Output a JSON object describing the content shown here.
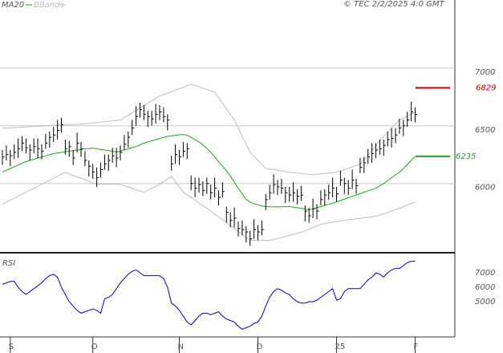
{
  "chart_data": [
    {
      "type": "ohlc",
      "source": "© TEC 2/2/2025 4:0 GMT",
      "categories": [
        null,
        null,
        "S",
        null,
        null,
        null,
        null,
        null,
        null,
        null,
        null,
        null,
        null,
        null,
        null,
        null,
        null,
        null,
        null,
        null,
        null,
        null,
        null,
        "O",
        null,
        null,
        null,
        null,
        null,
        null,
        null,
        null,
        null,
        null,
        null,
        null,
        null,
        null,
        null,
        null,
        null,
        null,
        null,
        null,
        null,
        "N",
        null,
        null,
        null,
        null,
        null,
        null,
        null,
        null,
        null,
        null,
        null,
        null,
        null,
        null,
        null,
        null,
        null,
        null,
        null,
        "D",
        null,
        null,
        null,
        null,
        null,
        null,
        null,
        null,
        null,
        null,
        null,
        null,
        null,
        null,
        null,
        null,
        null,
        null,
        null,
        "25",
        null,
        null,
        null,
        null,
        null,
        null,
        null,
        null,
        null,
        null,
        null,
        null,
        null,
        null,
        null,
        null,
        null,
        null,
        null,
        "F"
      ],
      "price": {
        "color": "#000000",
        "high": [
          6290,
          6330,
          6290,
          6340,
          6390,
          6410,
          6390,
          6340,
          6390,
          6390,
          6340,
          6430,
          6450,
          6490,
          6550,
          6570,
          6380,
          6370,
          6290,
          6440,
          6360,
          6280,
          6200,
          6170,
          6140,
          6180,
          6250,
          6250,
          6310,
          6310,
          6330,
          6420,
          6450,
          6550,
          6670,
          6700,
          6680,
          6630,
          6630,
          6690,
          6680,
          6660,
          6600,
          6240,
          6340,
          6290,
          6360,
          6350,
          6070,
          6050,
          6050,
          6020,
          6050,
          5990,
          6050,
          5940,
          6010,
          5800,
          5750,
          5790,
          5670,
          5680,
          5630,
          5590,
          5690,
          5640,
          5680,
          5910,
          5990,
          6080,
          6030,
          6040,
          5970,
          5970,
          6010,
          5950,
          5980,
          5810,
          5790,
          5870,
          5820,
          5940,
          5950,
          5990,
          6050,
          5970,
          6110,
          6050,
          6030,
          6120,
          6040,
          6220,
          6230,
          6300,
          6350,
          6350,
          6380,
          6380,
          6450,
          6480,
          6480,
          6560,
          6550,
          6620,
          6710,
          6660
        ],
        "low": [
          6160,
          6200,
          6150,
          6210,
          6220,
          6280,
          6260,
          6200,
          6260,
          6220,
          6210,
          6300,
          6310,
          6360,
          6380,
          6440,
          6250,
          6230,
          6160,
          6270,
          6230,
          6150,
          6060,
          6040,
          5970,
          6050,
          6120,
          6110,
          6180,
          6140,
          6200,
          6290,
          6310,
          6420,
          6500,
          6570,
          6550,
          6490,
          6500,
          6520,
          6550,
          6530,
          6460,
          6110,
          6170,
          6160,
          6230,
          6210,
          5940,
          5880,
          5920,
          5890,
          5910,
          5860,
          5880,
          5810,
          5880,
          5660,
          5620,
          5620,
          5540,
          5550,
          5490,
          5460,
          5520,
          5510,
          5550,
          5770,
          5860,
          5910,
          5900,
          5910,
          5830,
          5840,
          5840,
          5820,
          5850,
          5670,
          5660,
          5700,
          5690,
          5810,
          5810,
          5860,
          5880,
          5840,
          5980,
          5910,
          5900,
          5950,
          5910,
          6090,
          6090,
          6170,
          6180,
          6220,
          6250,
          6240,
          6320,
          6310,
          6350,
          6430,
          6410,
          6490,
          6540,
          6530
        ],
        "close": [
          6230,
          6250,
          6240,
          6270,
          6300,
          6350,
          6310,
          6290,
          6320,
          6300,
          6280,
          6350,
          6400,
          6420,
          6460,
          6510,
          6300,
          6320,
          6220,
          6350,
          6300,
          6200,
          6150,
          6100,
          6050,
          6120,
          6170,
          6200,
          6240,
          6220,
          6270,
          6340,
          6400,
          6480,
          6580,
          6640,
          6600,
          6580,
          6560,
          6600,
          6620,
          6580,
          6550,
          6170,
          6250,
          6230,
          6280,
          6300,
          6000,
          5960,
          5990,
          5940,
          6000,
          5920,
          5960,
          5880,
          5930,
          5750,
          5680,
          5700,
          5610,
          5600,
          5580,
          5520,
          5600,
          5580,
          5600,
          5860,
          5920,
          5990,
          5970,
          5960,
          5920,
          5900,
          5920,
          5890,
          5900,
          5760,
          5720,
          5780,
          5760,
          5860,
          5900,
          5920,
          5960,
          5910,
          6030,
          6000,
          5960,
          6030,
          5980,
          6140,
          6180,
          6230,
          6260,
          6290,
          6300,
          6330,
          6380,
          6390,
          6420,
          6480,
          6500,
          6550,
          6620,
          6600
        ]
      },
      "ma": {
        "name": "MA20",
        "color": "#1fa51f",
        "values": [
          6100,
          6115,
          6130,
          6145,
          6160,
          6175,
          6190,
          6200,
          6210,
          6220,
          6230,
          6240,
          6250,
          6258,
          6265,
          6270,
          6275,
          6280,
          6285,
          6290,
          6295,
          6300,
          6303,
          6305,
          6300,
          6295,
          6290,
          6285,
          6280,
          6272,
          6280,
          6290,
          6300,
          6310,
          6320,
          6335,
          6350,
          6360,
          6370,
          6380,
          6390,
          6400,
          6408,
          6412,
          6418,
          6422,
          6424,
          6420,
          6400,
          6380,
          6360,
          6335,
          6306,
          6270,
          6230,
          6190,
          6150,
          6110,
          6065,
          6010,
          5960,
          5910,
          5860,
          5840,
          5825,
          5815,
          5805,
          5800,
          5798,
          5797,
          5797,
          5798,
          5799,
          5800,
          5795,
          5790,
          5785,
          5778,
          5771,
          5780,
          5790,
          5800,
          5810,
          5819,
          5830,
          5840,
          5852,
          5865,
          5877,
          5889,
          5900,
          5912,
          5924,
          5936,
          5947,
          5958,
          5980,
          6000,
          6025,
          6050,
          6075,
          6097,
          6130,
          6165,
          6200,
          6235
        ]
      },
      "bbands": {
        "name": "BBands",
        "color": "#bdbdbd",
        "upper": [
          6480,
          6480,
          6482,
          6484,
          6486,
          6488,
          6490,
          6492,
          6494,
          6496,
          6498,
          6500,
          6502,
          6504,
          6506,
          6508,
          6510,
          6511,
          6512,
          6513,
          6514,
          6518,
          6521,
          6525,
          6528,
          6532,
          6535,
          6539,
          6542,
          6546,
          6549,
          6570,
          6591,
          6612,
          6633,
          6653,
          6674,
          6695,
          6716,
          6737,
          6757,
          6770,
          6783,
          6796,
          6809,
          6822,
          6835,
          6848,
          6861,
          6850,
          6838,
          6827,
          6815,
          6804,
          6792,
          6743,
          6695,
          6646,
          6598,
          6549,
          6480,
          6410,
          6341,
          6271,
          6236,
          6202,
          6167,
          6132,
          6126,
          6120,
          6114,
          6108,
          6103,
          6097,
          6094,
          6090,
          6087,
          6083,
          6080,
          6076,
          6080,
          6083,
          6087,
          6090,
          6094,
          6097,
          6109,
          6120,
          6132,
          6144,
          6155,
          6167,
          6207,
          6248,
          6288,
          6329,
          6369,
          6410,
          6445,
          6480,
          6515,
          6549,
          6566,
          6584,
          6601,
          6618
        ],
        "lower": [
          5820,
          5837,
          5855,
          5872,
          5890,
          5907,
          5924,
          5941,
          5958,
          5975,
          5993,
          6010,
          6028,
          6045,
          6062,
          6080,
          6097,
          6084,
          6071,
          6058,
          6045,
          6032,
          6019,
          6006,
          5993,
          5993,
          5993,
          5993,
          5993,
          5993,
          5993,
          5982,
          5970,
          5959,
          5947,
          5936,
          5924,
          5941,
          5959,
          5976,
          5993,
          6016,
          6039,
          6062,
          6016,
          5970,
          5924,
          5901,
          5878,
          5855,
          5831,
          5808,
          5785,
          5760,
          5735,
          5711,
          5686,
          5661,
          5636,
          5611,
          5585,
          5559,
          5533,
          5507,
          5507,
          5507,
          5507,
          5507,
          5507,
          5516,
          5524,
          5533,
          5542,
          5550,
          5559,
          5568,
          5576,
          5590,
          5604,
          5618,
          5632,
          5646,
          5652,
          5658,
          5664,
          5669,
          5675,
          5681,
          5685,
          5689,
          5694,
          5698,
          5702,
          5707,
          5711,
          5715,
          5727,
          5738,
          5750,
          5762,
          5773,
          5785,
          5799,
          5813,
          5826,
          5840
        ]
      },
      "markers": [
        {
          "value": 6829,
          "color": "#c00000"
        },
        {
          "value": 6235,
          "color": "#1fa51f"
        }
      ],
      "ylim": [
        5400,
        7590
      ],
      "yticks": [
        6000,
        6500,
        7000
      ],
      "grid": true
    },
    {
      "type": "line",
      "title": "RSI",
      "color": "#0000cc",
      "values": [
        62,
        63,
        64,
        64,
        60,
        57,
        55,
        57,
        59,
        61,
        63,
        66,
        68,
        69,
        67,
        60,
        55,
        50,
        47,
        44,
        42,
        43,
        44,
        45,
        44,
        42,
        52,
        53,
        55,
        59,
        63,
        66,
        69,
        71,
        72,
        70,
        68,
        68,
        68,
        68,
        68,
        66,
        60,
        49,
        47,
        44,
        40,
        36,
        34,
        37,
        40,
        42,
        42,
        41,
        42,
        43,
        40,
        38,
        37,
        36,
        33,
        31,
        32,
        33,
        35,
        36,
        40,
        47,
        53,
        57,
        59,
        58,
        56,
        55,
        52,
        50,
        49,
        49,
        50,
        50,
        51,
        53,
        55,
        57,
        59,
        51,
        52,
        57,
        59,
        59,
        59,
        59,
        62,
        65,
        67,
        70,
        69,
        67,
        70,
        72,
        73,
        73,
        75,
        77,
        78,
        78
      ],
      "ylim": [
        25.6,
        82.2
      ],
      "yticks": [
        {
          "value": 70,
          "label": "7000"
        },
        {
          "value": 60,
          "label": "6000"
        },
        {
          "value": 50,
          "label": "5000"
        }
      ]
    }
  ]
}
